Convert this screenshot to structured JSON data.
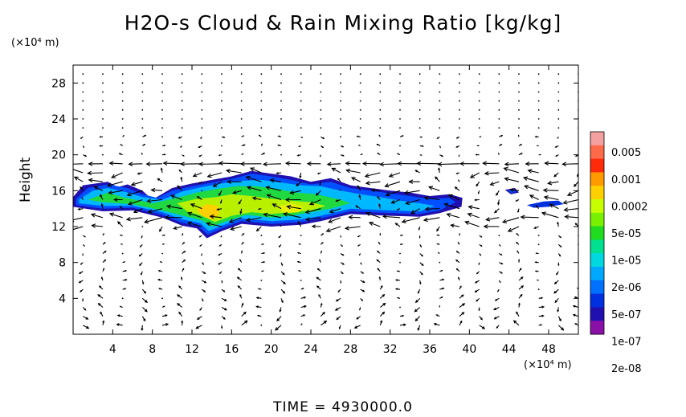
{
  "title": "H2O-s Cloud & Rain Mixing Ratio [kg/kg]",
  "y_unit": "(×10⁴ m)",
  "x_unit": "(×10⁴ m)",
  "footer": "TIME = 4930000.0",
  "chart_data": {
    "type": "heatmap",
    "title": "H2O-s Cloud & Rain Mixing Ratio [kg/kg]",
    "xlabel": "(×10⁴ m)",
    "ylabel": "Height",
    "xlim": [
      0,
      51
    ],
    "ylim": [
      0,
      30
    ],
    "xticks": [
      4,
      8,
      12,
      16,
      20,
      24,
      28,
      32,
      36,
      40,
      44,
      48
    ],
    "yticks": [
      4,
      8,
      12,
      16,
      20,
      24,
      28
    ],
    "colorbar": {
      "labels": [
        "0.005",
        "0.001",
        "0.0002",
        "5e-05",
        "1e-05",
        "2e-06",
        "5e-07",
        "1e-07",
        "2e-08"
      ],
      "colors": [
        "#f4a0a0",
        "#ff6a4a",
        "#ff2a0a",
        "#ff9a00",
        "#ffd000",
        "#c8ff00",
        "#78f000",
        "#20dc20",
        "#00e090",
        "#00d8e0",
        "#00a8ff",
        "#0070ff",
        "#0030e0",
        "#2010b0",
        "#8a10a8"
      ]
    },
    "cloud_layer": {
      "approx_height_range": [
        12,
        18
      ],
      "approx_x_range": [
        0,
        39
      ],
      "secondary_patches": [
        [
          44,
          44.5
        ],
        [
          46,
          49
        ]
      ]
    },
    "time": "4930000.0"
  }
}
